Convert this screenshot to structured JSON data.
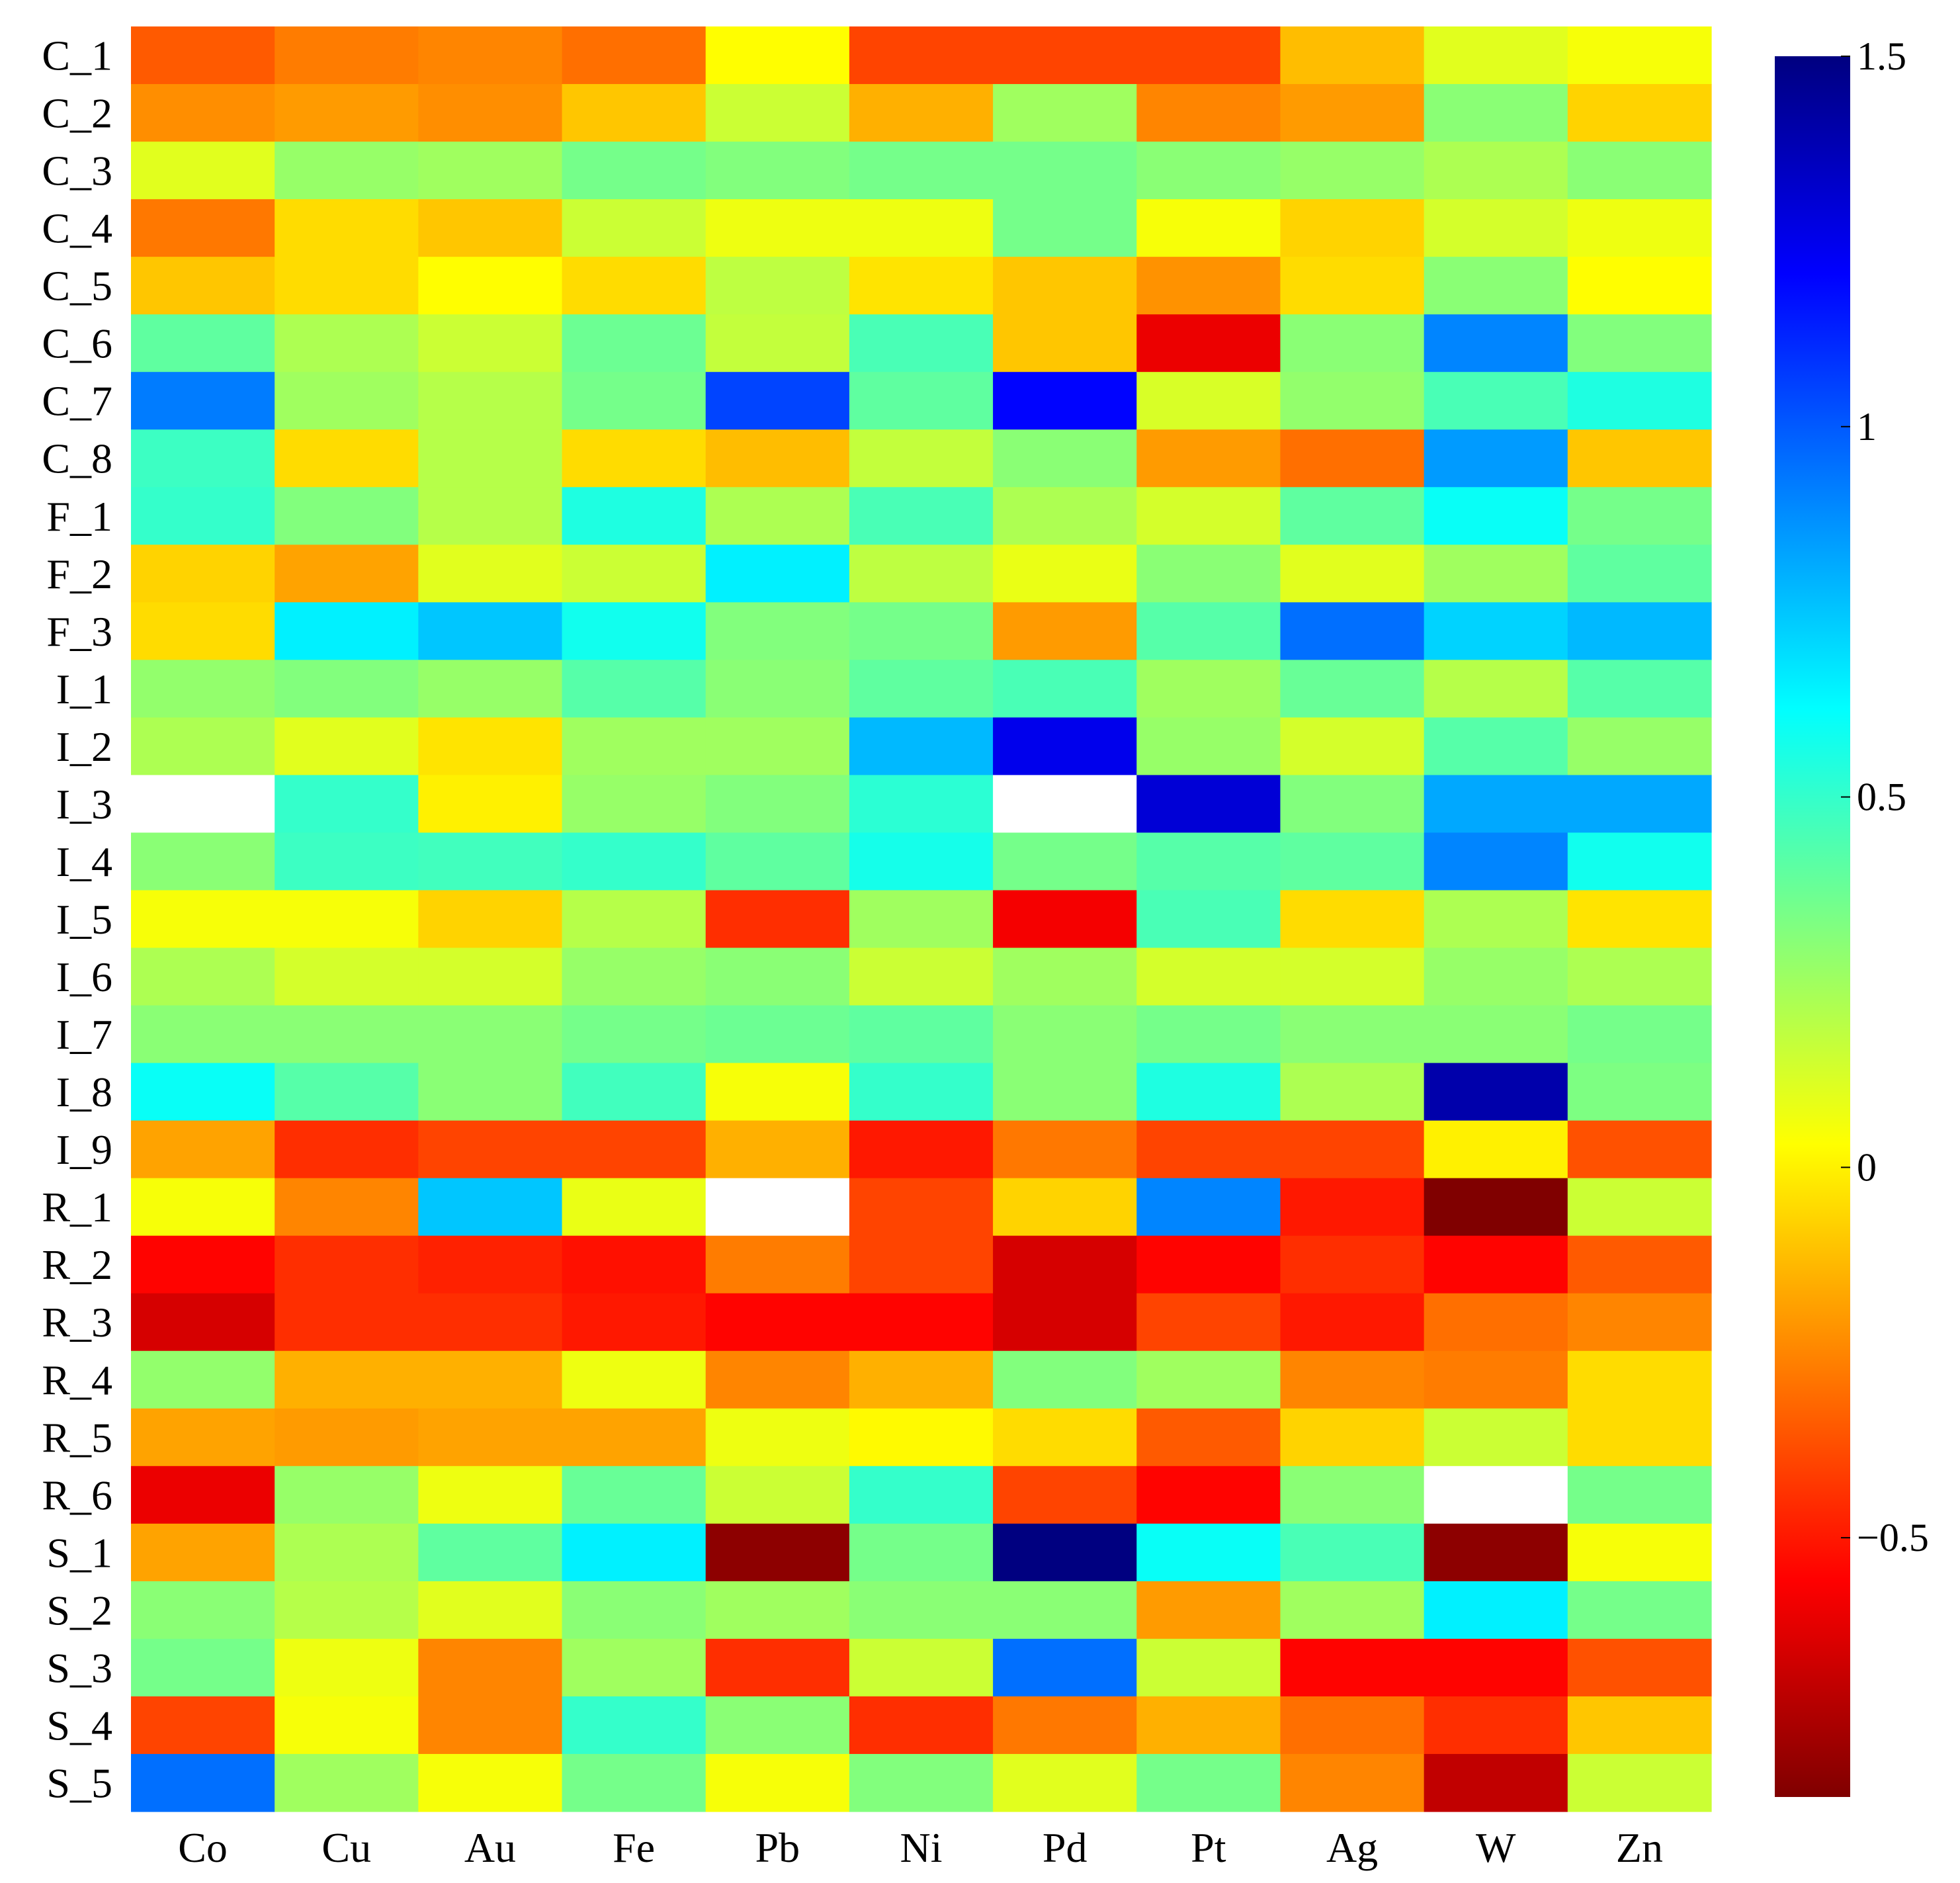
{
  "chart_data": {
    "type": "heatmap",
    "title": "",
    "xlabel": "",
    "ylabel": "",
    "columns": [
      "Co",
      "Cu",
      "Au",
      "Fe",
      "Pb",
      "Ni",
      "Pd",
      "Pt",
      "Ag",
      "W",
      "Zn"
    ],
    "rows": [
      "C_1",
      "C_2",
      "C_3",
      "C_4",
      "C_5",
      "C_6",
      "C_7",
      "C_8",
      "F_1",
      "F_2",
      "F_3",
      "I_1",
      "I_2",
      "I_3",
      "I_4",
      "I_5",
      "I_6",
      "I_7",
      "I_8",
      "I_9",
      "R_1",
      "R_2",
      "R_3",
      "R_4",
      "R_5",
      "R_6",
      "S_1",
      "S_2",
      "S_3",
      "S_4",
      "S_5"
    ],
    "values": [
      [
        -0.35,
        -0.27,
        -0.25,
        -0.3,
        0.03,
        -0.4,
        -0.4,
        -0.4,
        -0.12,
        0.1,
        0.05
      ],
      [
        -0.23,
        -0.2,
        -0.23,
        -0.1,
        0.15,
        -0.15,
        0.25,
        -0.25,
        -0.2,
        0.3,
        -0.07
      ],
      [
        0.1,
        0.27,
        0.25,
        0.35,
        0.32,
        0.35,
        0.35,
        0.3,
        0.27,
        0.22,
        0.3
      ],
      [
        -0.28,
        -0.05,
        -0.1,
        0.15,
        0.07,
        0.07,
        0.35,
        0.05,
        -0.07,
        0.13,
        0.07
      ],
      [
        -0.1,
        -0.05,
        0.03,
        -0.05,
        0.18,
        -0.03,
        -0.1,
        -0.22,
        -0.05,
        0.3,
        0.03
      ],
      [
        0.4,
        0.22,
        0.15,
        0.37,
        0.17,
        0.45,
        -0.1,
        -0.6,
        0.3,
        0.9,
        0.32
      ],
      [
        0.92,
        0.25,
        0.2,
        0.35,
        1.05,
        0.4,
        1.2,
        0.12,
        0.28,
        0.45,
        0.55
      ],
      [
        0.48,
        -0.05,
        0.2,
        -0.05,
        -0.12,
        0.17,
        0.3,
        -0.2,
        -0.3,
        0.85,
        -0.1
      ],
      [
        0.5,
        0.32,
        0.2,
        0.55,
        0.22,
        0.45,
        0.22,
        0.13,
        0.4,
        0.6,
        0.35
      ],
      [
        -0.07,
        -0.18,
        0.1,
        0.15,
        0.65,
        0.18,
        0.08,
        0.3,
        0.1,
        0.25,
        0.4
      ],
      [
        -0.05,
        0.65,
        0.75,
        0.58,
        0.32,
        0.35,
        -0.2,
        0.42,
        0.95,
        0.72,
        0.78
      ],
      [
        0.28,
        0.32,
        0.27,
        0.42,
        0.3,
        0.4,
        0.45,
        0.25,
        0.38,
        0.2,
        0.42
      ],
      [
        0.22,
        0.1,
        -0.03,
        0.25,
        0.25,
        0.78,
        1.25,
        0.27,
        0.13,
        0.42,
        0.27
      ],
      [
        null,
        0.5,
        0.0,
        0.27,
        0.32,
        0.52,
        null,
        1.3,
        0.32,
        0.82,
        0.82
      ],
      [
        0.3,
        0.48,
        0.47,
        0.5,
        0.4,
        0.57,
        0.35,
        0.42,
        0.4,
        0.9,
        0.58
      ],
      [
        0.05,
        0.05,
        -0.07,
        0.2,
        -0.45,
        0.25,
        -0.58,
        0.45,
        -0.05,
        0.22,
        -0.03
      ],
      [
        0.22,
        0.13,
        0.13,
        0.27,
        0.3,
        0.15,
        0.25,
        0.13,
        0.13,
        0.27,
        0.22
      ],
      [
        0.3,
        0.3,
        0.3,
        0.35,
        0.37,
        0.4,
        0.3,
        0.35,
        0.3,
        0.3,
        0.35
      ],
      [
        0.6,
        0.42,
        0.3,
        0.47,
        0.05,
        0.5,
        0.3,
        0.55,
        0.22,
        1.4,
        0.33
      ],
      [
        -0.18,
        -0.45,
        -0.4,
        -0.4,
        -0.15,
        -0.5,
        -0.28,
        -0.4,
        -0.4,
        0.0,
        -0.37
      ],
      [
        0.05,
        -0.25,
        0.75,
        0.08,
        null,
        -0.4,
        -0.07,
        0.9,
        -0.5,
        -0.85,
        0.15
      ],
      [
        -0.55,
        -0.45,
        -0.48,
        -0.52,
        -0.27,
        -0.4,
        -0.65,
        -0.55,
        -0.45,
        -0.55,
        -0.35
      ],
      [
        -0.65,
        -0.45,
        -0.45,
        -0.5,
        -0.55,
        -0.55,
        -0.65,
        -0.4,
        -0.5,
        -0.3,
        -0.25
      ],
      [
        0.28,
        -0.15,
        -0.15,
        0.07,
        -0.25,
        -0.15,
        0.32,
        0.25,
        -0.25,
        -0.27,
        -0.05
      ],
      [
        -0.18,
        -0.2,
        -0.18,
        -0.18,
        0.07,
        0.02,
        -0.05,
        -0.35,
        -0.07,
        0.15,
        -0.05
      ],
      [
        -0.6,
        0.27,
        0.07,
        0.38,
        0.15,
        0.5,
        -0.4,
        -0.55,
        0.3,
        null,
        0.35
      ],
      [
        -0.18,
        0.22,
        0.4,
        0.65,
        -0.82,
        0.35,
        1.5,
        0.6,
        0.45,
        -0.82,
        0.05
      ],
      [
        0.3,
        0.2,
        0.1,
        0.3,
        0.25,
        0.3,
        0.3,
        -0.2,
        0.25,
        0.65,
        0.35
      ],
      [
        0.35,
        0.07,
        -0.25,
        0.25,
        -0.45,
        0.15,
        0.95,
        0.15,
        -0.55,
        -0.55,
        -0.37
      ],
      [
        -0.4,
        0.05,
        -0.25,
        0.5,
        0.3,
        -0.45,
        -0.28,
        -0.15,
        -0.3,
        -0.45,
        -0.1
      ],
      [
        0.95,
        0.25,
        0.05,
        0.35,
        0.05,
        0.32,
        0.1,
        0.35,
        -0.25,
        -0.7,
        0.15
      ]
    ],
    "colorbar": {
      "colormap": "jet (reversed)",
      "vmin": -0.85,
      "vmax": 1.5,
      "ticks": [
        1.5,
        1,
        0.5,
        0,
        -0.5
      ],
      "tick_labels": [
        "1.5",
        "1",
        "0.5",
        "0",
        "−0.5"
      ]
    },
    "missing_color": "#ffffff",
    "grid": false,
    "legend": "right"
  }
}
